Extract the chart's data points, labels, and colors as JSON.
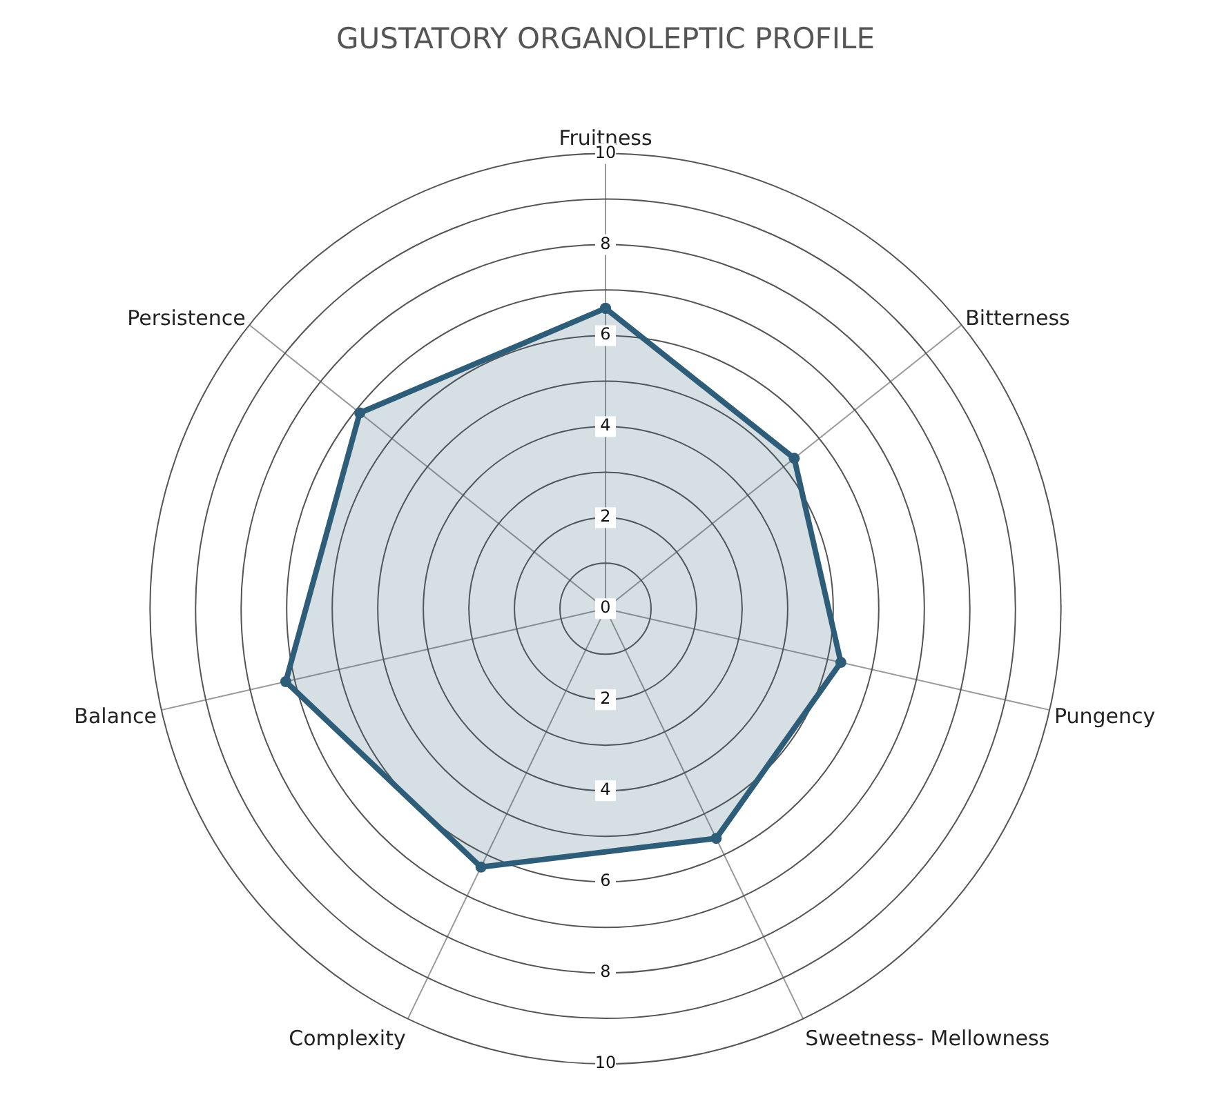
{
  "chart_data": {
    "type": "radar",
    "title": "GUSTATORY ORGANOLEPTIC PROFILE",
    "categories": [
      "Fruitness",
      "Bitterness",
      "Pungency",
      "Sweetness- Mellowness",
      "Complexity",
      "Balance",
      "Persistence"
    ],
    "series": [
      {
        "color": "#2e5d7a",
        "values": [
          6.6,
          5.3,
          5.3,
          5.6,
          6.3,
          7.2,
          6.9
        ]
      }
    ],
    "ylim": [
      0,
      10
    ],
    "yticks": [
      0,
      2,
      4,
      6,
      8,
      10
    ],
    "annotations": [
      "2",
      "4",
      "6",
      "8",
      "10"
    ],
    "marker": "circle",
    "line_style": "solid",
    "grid": true
  }
}
